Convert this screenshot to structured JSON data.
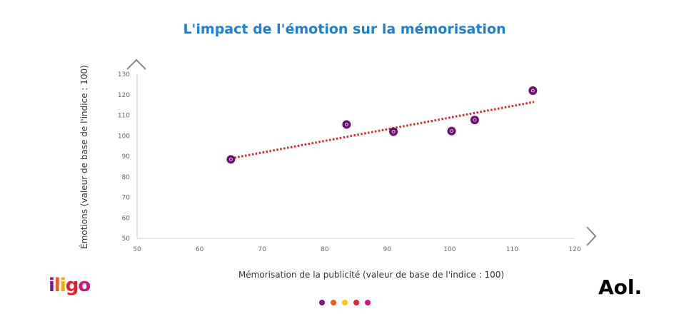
{
  "chart_data": {
    "type": "scatter",
    "title": "L'impact de l'émotion sur la mémorisation",
    "xlabel": "Mémorisation de la publicité (valeur de base de l'indice : 100)",
    "ylabel": "Émotions (valeur de base de l'indice : 100)",
    "xlim": [
      50,
      120
    ],
    "ylim": [
      50,
      130
    ],
    "xticks": [
      50,
      60,
      70,
      80,
      90,
      100,
      110,
      120
    ],
    "yticks": [
      50,
      60,
      70,
      80,
      90,
      100,
      110,
      120,
      130
    ],
    "grid": false,
    "points": [
      [
        65,
        88.5
      ],
      [
        83.5,
        105.5
      ],
      [
        91,
        102
      ],
      [
        100.3,
        102.3
      ],
      [
        104,
        107.7
      ],
      [
        113.3,
        122
      ]
    ],
    "trendline": {
      "style": "dotted",
      "color": "#e8202a",
      "from": [
        65,
        89
      ],
      "to": [
        113.5,
        116.5
      ]
    },
    "marker_color": "#6b0f6e"
  },
  "logos": {
    "left": "iligo",
    "right": "Aol."
  },
  "carousel_dots": [
    "#7a1a7e",
    "#f05a1e",
    "#f7c800",
    "#e8202a",
    "#d4127f"
  ],
  "nav": {
    "up": "chevron-up",
    "right": "chevron-right"
  }
}
